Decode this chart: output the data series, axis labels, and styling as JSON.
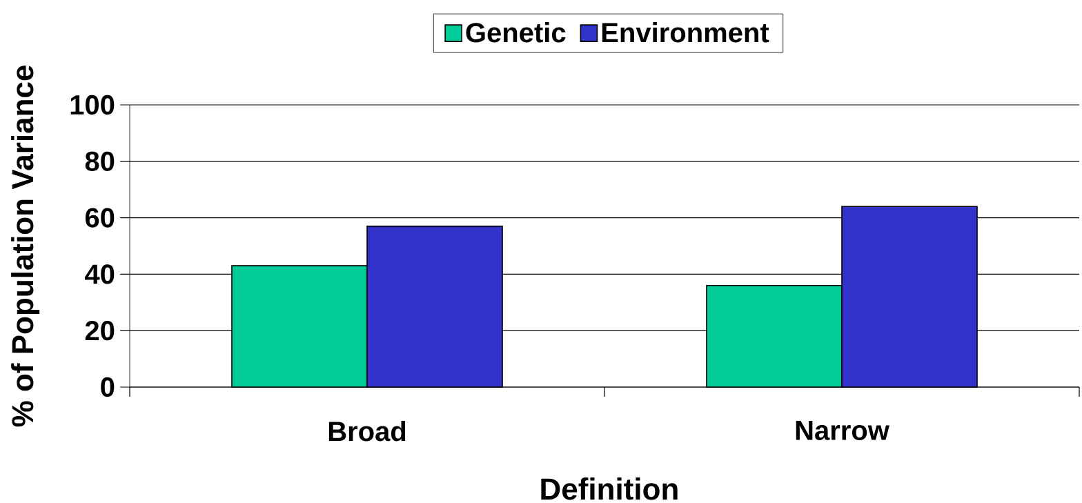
{
  "chart_data": {
    "type": "bar",
    "xlabel": "Definition",
    "ylabel": "% of Population Variance",
    "categories": [
      "Broad",
      "Narrow"
    ],
    "series": [
      {
        "name": "Genetic",
        "color": "#00cc99",
        "values": [
          43,
          36
        ]
      },
      {
        "name": "Environment",
        "color": "#3333cc",
        "values": [
          57,
          64
        ]
      }
    ],
    "ylim": [
      0,
      100
    ],
    "yticks": [
      0,
      20,
      40,
      60,
      80,
      100
    ],
    "grid": "y",
    "legend": "top"
  }
}
